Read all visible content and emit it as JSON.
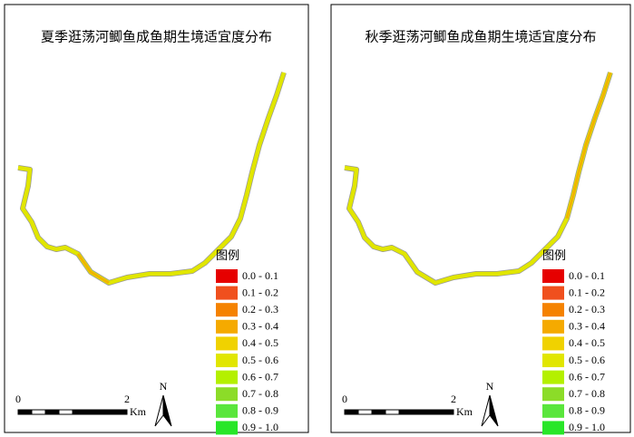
{
  "panels": [
    {
      "title": "夏季逛荡河鲫鱼成鱼期生境适宜度分布",
      "legend_title": "图例",
      "legend": [
        {
          "label": "0.0 - 0.1",
          "color": "#e60000"
        },
        {
          "label": "0.1 - 0.2",
          "color": "#f0501e"
        },
        {
          "label": "0.2 - 0.3",
          "color": "#f58200"
        },
        {
          "label": "0.3 - 0.4",
          "color": "#f5aa00"
        },
        {
          "label": "0.4 - 0.5",
          "color": "#f0d200"
        },
        {
          "label": "0.5 - 0.6",
          "color": "#e1e600"
        },
        {
          "label": "0.6 - 0.7",
          "color": "#b4f000"
        },
        {
          "label": "0.7 - 0.8",
          "color": "#8cdc28"
        },
        {
          "label": "0.8 - 0.9",
          "color": "#5ae63c"
        },
        {
          "label": "0.9 - 1.0",
          "color": "#28e628"
        }
      ],
      "scale_start": "0",
      "scale_end": "2",
      "scale_unit": "Km",
      "north": "N"
    },
    {
      "title": "秋季逛荡河鲫鱼成鱼期生境适宜度分布",
      "legend_title": "图例",
      "legend": [
        {
          "label": "0.0 - 0.1",
          "color": "#e60000"
        },
        {
          "label": "0.1 - 0.2",
          "color": "#f0501e"
        },
        {
          "label": "0.2 - 0.3",
          "color": "#f58200"
        },
        {
          "label": "0.3 - 0.4",
          "color": "#f5aa00"
        },
        {
          "label": "0.4 - 0.5",
          "color": "#f0d200"
        },
        {
          "label": "0.5 - 0.6",
          "color": "#e1e600"
        },
        {
          "label": "0.6 - 0.7",
          "color": "#b4f000"
        },
        {
          "label": "0.7 - 0.8",
          "color": "#8cdc28"
        },
        {
          "label": "0.8 - 0.9",
          "color": "#5ae63c"
        },
        {
          "label": "0.9 - 1.0",
          "color": "#28e628"
        }
      ],
      "scale_start": "0",
      "scale_end": "2",
      "scale_unit": "Km",
      "north": "N"
    }
  ]
}
